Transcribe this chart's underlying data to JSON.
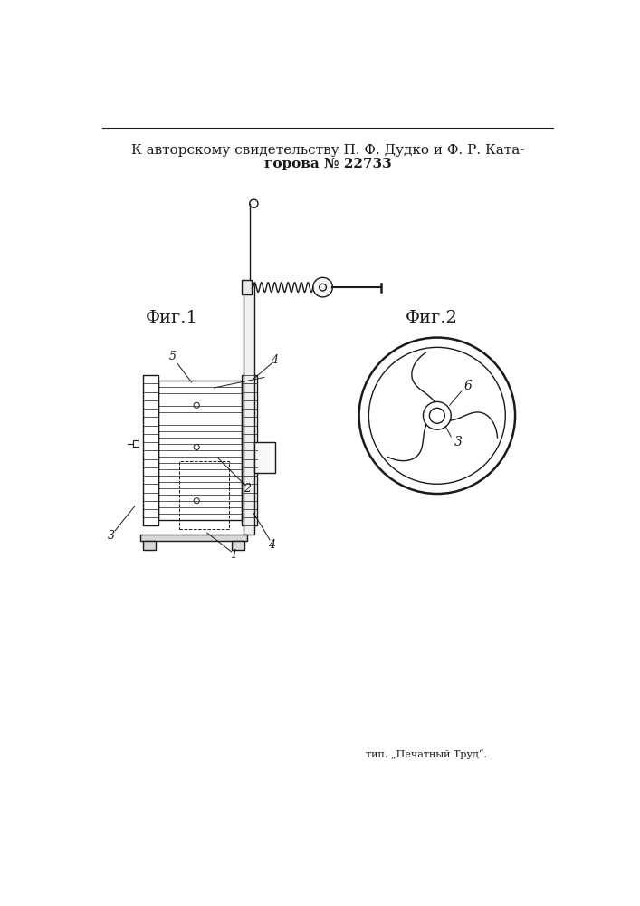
{
  "title_line1": "К авторскому свидетельству П. Ф. Дудко и Ф. Р. Ката-",
  "title_line2": "горова № 22733",
  "fig1_label": "Φиг.1",
  "fig2_label": "Φиг.2",
  "footer": "тип. „Печатный Труд“.",
  "bg_color": "#ffffff",
  "line_color": "#1a1a1a"
}
